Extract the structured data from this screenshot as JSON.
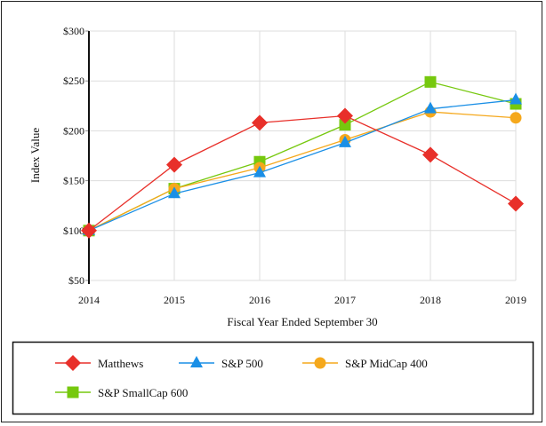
{
  "chart_data": {
    "type": "line",
    "title": "",
    "xlabel": "Fiscal Year Ended September 30",
    "ylabel": "Index Value",
    "x": [
      2014,
      2015,
      2016,
      2017,
      2018,
      2019
    ],
    "x_tick_labels": [
      "2014",
      "2015",
      "2016",
      "2017",
      "2018",
      "2019"
    ],
    "ylim": [
      50,
      300
    ],
    "y_ticks": [
      50,
      100,
      150,
      200,
      250,
      300
    ],
    "y_tick_labels": [
      "$50",
      "$100",
      "$150",
      "$200",
      "$250",
      "$300"
    ],
    "grid": true,
    "legend_position": "bottom",
    "series": [
      {
        "name": "Matthews",
        "color": "#e8302a",
        "marker": "diamond",
        "values": [
          100,
          166,
          208,
          215,
          176,
          127
        ]
      },
      {
        "name": "S&P 500",
        "color": "#1a8fe6",
        "marker": "triangle",
        "values": [
          100,
          137,
          158,
          188,
          222,
          231
        ]
      },
      {
        "name": "S&P MidCap 400",
        "color": "#f5a81c",
        "marker": "circle",
        "values": [
          100,
          142,
          163,
          191,
          219,
          213
        ]
      },
      {
        "name": "S&P SmallCap 600",
        "color": "#76c80e",
        "marker": "square",
        "values": [
          100,
          142,
          169,
          206,
          249,
          227
        ]
      }
    ]
  }
}
